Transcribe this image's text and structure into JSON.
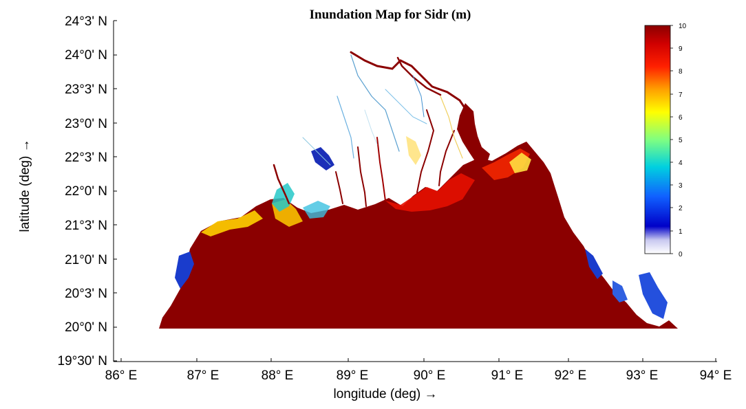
{
  "title": "Inundation Map for Sidr (m)",
  "xlabel": "longitude (deg) →",
  "ylabel": "latitude (deg) →",
  "x_ticks": [
    "86° E",
    "87° E",
    "88° E",
    "89° E",
    "90° E",
    "91° E",
    "92° E",
    "93° E",
    "94° E"
  ],
  "y_ticks": [
    "24°3' N",
    "24°0' N",
    "23°3' N",
    "23°0' N",
    "22°3' N",
    "22°0' N",
    "21°3' N",
    "21°0' N",
    "20°3' N",
    "20°0' N",
    "19°30' N"
  ],
  "colorbar": {
    "ticks": [
      "10",
      "9",
      "8",
      "7",
      "6",
      "5",
      "4",
      "3",
      "2",
      "1",
      "0"
    ],
    "min": 0,
    "max": 10,
    "colors": [
      "#ffffff",
      "#0000c8",
      "#1060ff",
      "#00d0e0",
      "#80ff80",
      "#ffff00",
      "#ffa000",
      "#ff2000",
      "#c00000",
      "#800000"
    ]
  },
  "colors": {
    "deep_inundation": "#8b0000",
    "high": "#e00000",
    "mid": "#ffd000",
    "low": "#2dd4d4",
    "very_low": "#1a3ccc"
  }
}
